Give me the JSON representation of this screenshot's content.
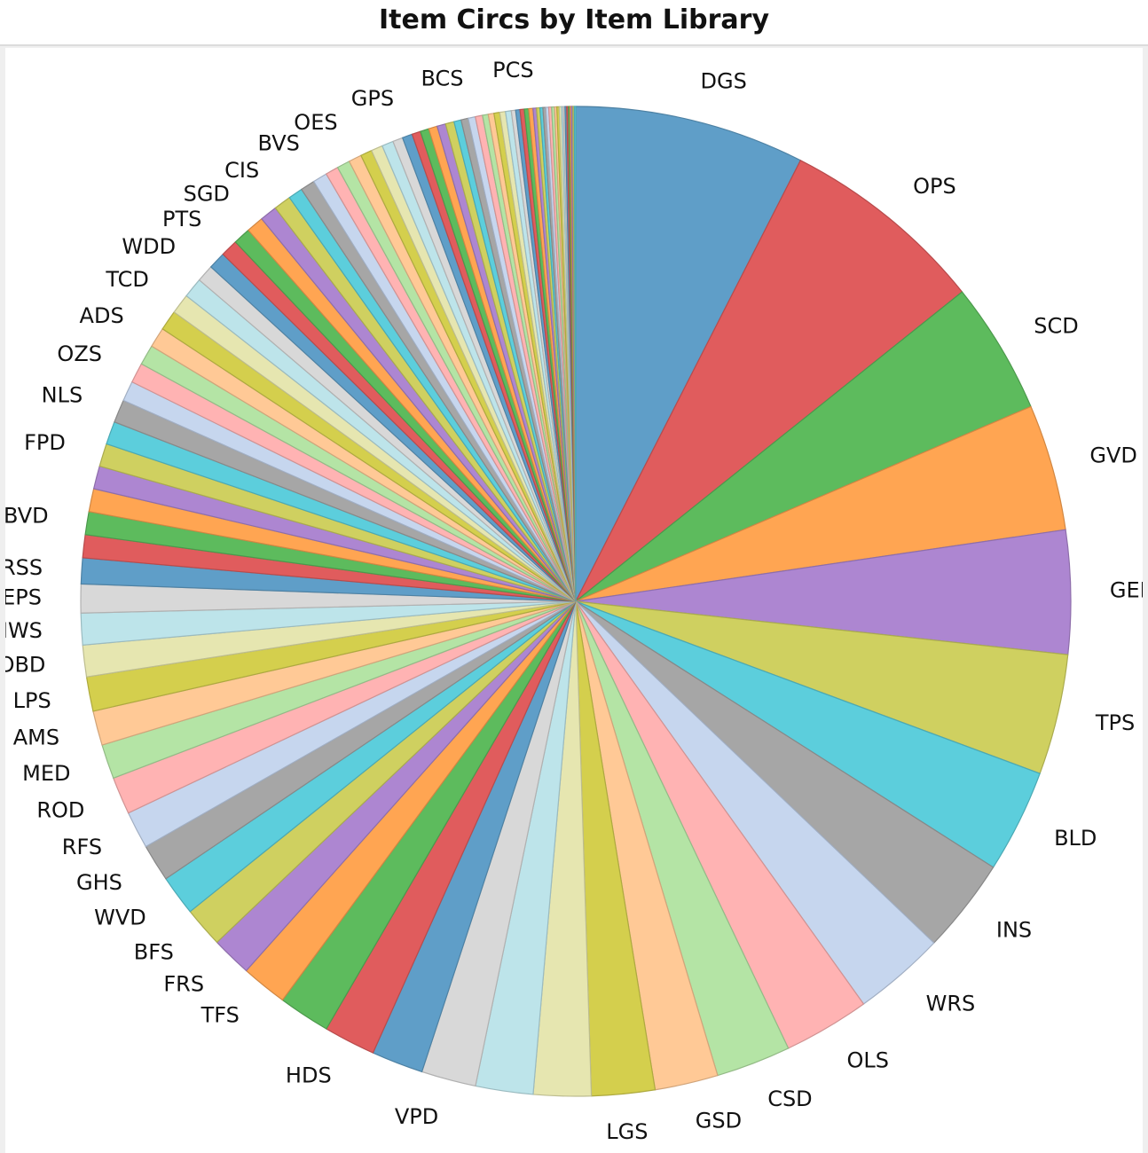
{
  "header": {
    "title": "Item Circs by Item Library"
  },
  "chart_data": {
    "type": "pie",
    "title": "Item Circs by Item Library",
    "slices": [
      {
        "label": "DGS",
        "value": 8.0,
        "color": "#5f9ec8"
      },
      {
        "label": "OPS",
        "value": 7.2,
        "color": "#e05c5d"
      },
      {
        "label": "SCD",
        "value": 4.6,
        "color": "#5dbb5d"
      },
      {
        "label": "GVD",
        "value": 4.4,
        "color": "#ffa552"
      },
      {
        "label": "GED",
        "value": 4.3,
        "color": "#ad86d1"
      },
      {
        "label": "TPS",
        "value": 4.2,
        "color": "#cfd060"
      },
      {
        "label": "BLD",
        "value": 3.6,
        "color": "#5ccedc"
      },
      {
        "label": "INS",
        "value": 3.3,
        "color": "#a6a6a6"
      },
      {
        "label": "WRS",
        "value": 3.2,
        "color": "#c6d6ee"
      },
      {
        "label": "OLS",
        "value": 3.0,
        "color": "#ffb3b3"
      },
      {
        "label": "CSD",
        "value": 2.6,
        "color": "#b4e4a5"
      },
      {
        "label": "GSD",
        "value": 2.2,
        "color": "#ffc996"
      },
      {
        "label": "LGS",
        "value": 2.2,
        "color": "#d4cf4d"
      },
      {
        "label": "",
        "value": 2.0,
        "color": "#e6e6b0"
      },
      {
        "label": "",
        "value": 2.0,
        "color": "#bde4ea"
      },
      {
        "label": "VPD",
        "value": 1.9,
        "color": "#d8d8d8"
      },
      {
        "label": "",
        "value": 1.8,
        "color": "#5f9ec8"
      },
      {
        "label": "HDS",
        "value": 1.8,
        "color": "#e05c5d"
      },
      {
        "label": "",
        "value": 1.8,
        "color": "#5dbb5d"
      },
      {
        "label": "TFS",
        "value": 1.6,
        "color": "#ffa552"
      },
      {
        "label": "FRS",
        "value": 1.4,
        "color": "#ad86d1"
      },
      {
        "label": "BFS",
        "value": 1.4,
        "color": "#cfd060"
      },
      {
        "label": "WVD",
        "value": 1.4,
        "color": "#5ccedc"
      },
      {
        "label": "GHS",
        "value": 1.3,
        "color": "#a6a6a6"
      },
      {
        "label": "RFS",
        "value": 1.3,
        "color": "#c6d6ee"
      },
      {
        "label": "ROD",
        "value": 1.3,
        "color": "#ffb3b3"
      },
      {
        "label": "MED",
        "value": 1.2,
        "color": "#b4e4a5"
      },
      {
        "label": "AMS",
        "value": 1.2,
        "color": "#ffc996"
      },
      {
        "label": "LPS",
        "value": 1.2,
        "color": "#d4cf4d"
      },
      {
        "label": "OBD",
        "value": 1.1,
        "color": "#e6e6b0"
      },
      {
        "label": "HWS",
        "value": 1.1,
        "color": "#bde4ea"
      },
      {
        "label": "EPS",
        "value": 1.0,
        "color": "#d8d8d8"
      },
      {
        "label": "RSS",
        "value": 0.9,
        "color": "#5f9ec8"
      },
      {
        "label": "",
        "value": 0.8,
        "color": "#e05c5d"
      },
      {
        "label": "BVD",
        "value": 0.8,
        "color": "#5dbb5d"
      },
      {
        "label": "",
        "value": 0.8,
        "color": "#ffa552"
      },
      {
        "label": "",
        "value": 0.8,
        "color": "#ad86d1"
      },
      {
        "label": "FPD",
        "value": 0.8,
        "color": "#cfd060"
      },
      {
        "label": "",
        "value": 0.8,
        "color": "#5ccedc"
      },
      {
        "label": "NLS",
        "value": 0.8,
        "color": "#a6a6a6"
      },
      {
        "label": "",
        "value": 0.7,
        "color": "#c6d6ee"
      },
      {
        "label": "OZS",
        "value": 0.7,
        "color": "#ffb3b3"
      },
      {
        "label": "",
        "value": 0.7,
        "color": "#b4e4a5"
      },
      {
        "label": "ADS",
        "value": 0.7,
        "color": "#ffc996"
      },
      {
        "label": "",
        "value": 0.7,
        "color": "#d4cf4d"
      },
      {
        "label": "TCD",
        "value": 0.7,
        "color": "#e6e6b0"
      },
      {
        "label": "",
        "value": 0.7,
        "color": "#bde4ea"
      },
      {
        "label": "WDD",
        "value": 0.6,
        "color": "#d8d8d8"
      },
      {
        "label": "",
        "value": 0.6,
        "color": "#5f9ec8"
      },
      {
        "label": "PTS",
        "value": 0.6,
        "color": "#e05c5d"
      },
      {
        "label": "",
        "value": 0.6,
        "color": "#5dbb5d"
      },
      {
        "label": "SGD",
        "value": 0.6,
        "color": "#ffa552"
      },
      {
        "label": "",
        "value": 0.6,
        "color": "#ad86d1"
      },
      {
        "label": "CIS",
        "value": 0.6,
        "color": "#cfd060"
      },
      {
        "label": "",
        "value": 0.5,
        "color": "#5ccedc"
      },
      {
        "label": "",
        "value": 0.5,
        "color": "#a6a6a6"
      },
      {
        "label": "BVS",
        "value": 0.5,
        "color": "#c6d6ee"
      },
      {
        "label": "",
        "value": 0.45,
        "color": "#ffb3b3"
      },
      {
        "label": "",
        "value": 0.45,
        "color": "#b4e4a5"
      },
      {
        "label": "OES",
        "value": 0.45,
        "color": "#ffc996"
      },
      {
        "label": "",
        "value": 0.4,
        "color": "#d4cf4d"
      },
      {
        "label": "",
        "value": 0.4,
        "color": "#e6e6b0"
      },
      {
        "label": "",
        "value": 0.4,
        "color": "#bde4ea"
      },
      {
        "label": "",
        "value": 0.35,
        "color": "#d8d8d8"
      },
      {
        "label": "GPS",
        "value": 0.35,
        "color": "#5f9ec8"
      },
      {
        "label": "",
        "value": 0.3,
        "color": "#e05c5d"
      },
      {
        "label": "",
        "value": 0.3,
        "color": "#5dbb5d"
      },
      {
        "label": "",
        "value": 0.3,
        "color": "#ffa552"
      },
      {
        "label": "",
        "value": 0.3,
        "color": "#ad86d1"
      },
      {
        "label": "",
        "value": 0.3,
        "color": "#cfd060"
      },
      {
        "label": "",
        "value": 0.25,
        "color": "#5ccedc"
      },
      {
        "label": "",
        "value": 0.25,
        "color": "#a6a6a6"
      },
      {
        "label": "BCS",
        "value": 0.25,
        "color": "#c6d6ee"
      },
      {
        "label": "",
        "value": 0.25,
        "color": "#ffb3b3"
      },
      {
        "label": "",
        "value": 0.2,
        "color": "#b4e4a5"
      },
      {
        "label": "",
        "value": 0.2,
        "color": "#ffc996"
      },
      {
        "label": "",
        "value": 0.2,
        "color": "#d4cf4d"
      },
      {
        "label": "",
        "value": 0.2,
        "color": "#e6e6b0"
      },
      {
        "label": "",
        "value": 0.2,
        "color": "#bde4ea"
      },
      {
        "label": "",
        "value": 0.15,
        "color": "#d8d8d8"
      },
      {
        "label": "PCS",
        "value": 0.15,
        "color": "#5f9ec8"
      },
      {
        "label": "",
        "value": 0.15,
        "color": "#e05c5d"
      },
      {
        "label": "",
        "value": 0.15,
        "color": "#5dbb5d"
      },
      {
        "label": "",
        "value": 0.15,
        "color": "#ffa552"
      },
      {
        "label": "",
        "value": 0.12,
        "color": "#ad86d1"
      },
      {
        "label": "",
        "value": 0.12,
        "color": "#cfd060"
      },
      {
        "label": "",
        "value": 0.1,
        "color": "#5ccedc"
      },
      {
        "label": "",
        "value": 0.1,
        "color": "#a6a6a6"
      },
      {
        "label": "",
        "value": 0.1,
        "color": "#c6d6ee"
      },
      {
        "label": "",
        "value": 0.1,
        "color": "#ffb3b3"
      },
      {
        "label": "",
        "value": 0.1,
        "color": "#b4e4a5"
      },
      {
        "label": "",
        "value": 0.08,
        "color": "#ffc996"
      },
      {
        "label": "",
        "value": 0.08,
        "color": "#d4cf4d"
      },
      {
        "label": "",
        "value": 0.08,
        "color": "#e6e6b0"
      },
      {
        "label": "",
        "value": 0.06,
        "color": "#bde4ea"
      },
      {
        "label": "",
        "value": 0.06,
        "color": "#d8d8d8"
      },
      {
        "label": "",
        "value": 0.06,
        "color": "#5f9ec8"
      },
      {
        "label": "",
        "value": 0.06,
        "color": "#e05c5d"
      },
      {
        "label": "",
        "value": 0.05,
        "color": "#5dbb5d"
      },
      {
        "label": "",
        "value": 0.05,
        "color": "#ffa552"
      },
      {
        "label": "",
        "value": 0.05,
        "color": "#ad86d1"
      },
      {
        "label": "",
        "value": 0.05,
        "color": "#cfd060"
      },
      {
        "label": "",
        "value": 0.05,
        "color": "#5ccedc"
      }
    ]
  }
}
